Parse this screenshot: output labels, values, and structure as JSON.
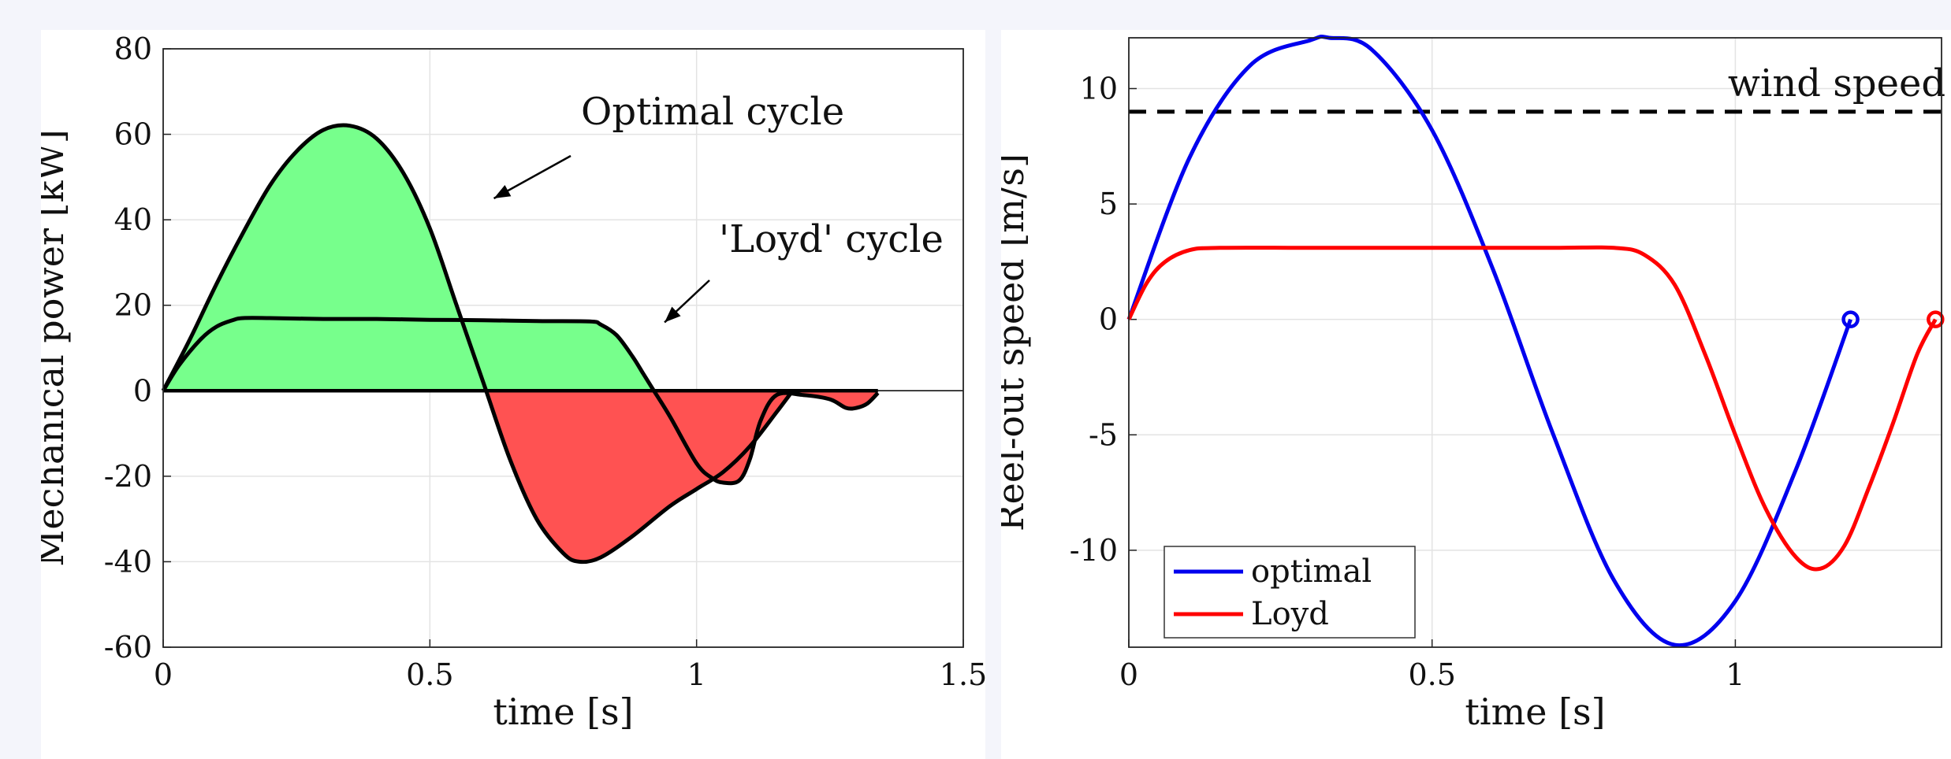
{
  "chart_data": [
    {
      "type": "area",
      "xlabel": "time [s]",
      "ylabel": "Mechanical power [kW]",
      "xlim": [
        0,
        1.5
      ],
      "ylim": [
        -60,
        80
      ],
      "xticks": [
        0,
        0.5,
        1,
        1.5
      ],
      "xtick_labels": [
        "0",
        "0.5",
        "1",
        "1.5"
      ],
      "yticks": [
        -60,
        -40,
        -20,
        0,
        20,
        40,
        60,
        80
      ],
      "ytick_labels": [
        "-60",
        "-40",
        "-20",
        "0",
        "20",
        "40",
        "60",
        "80"
      ],
      "grid": true,
      "positive_fill_color": "#77ff8c",
      "negative_fill_color": "#ff5252",
      "line_color": "#000000",
      "annotations": [
        {
          "text": "Optimal cycle",
          "arrow_to": [
            0.62,
            45
          ]
        },
        {
          "text": "'Loyd' cycle",
          "arrow_to": [
            0.94,
            16
          ]
        }
      ],
      "series": [
        {
          "x": [
            0,
            0.05,
            0.1,
            0.15,
            0.2,
            0.25,
            0.3,
            0.35,
            0.4,
            0.45,
            0.5,
            0.55,
            0.6,
            0.65,
            0.7,
            0.75,
            0.78,
            0.82,
            0.88,
            0.95,
            1.0,
            1.05,
            1.1,
            1.15,
            1.18
          ],
          "values": [
            0,
            12,
            25,
            37,
            48,
            56,
            61,
            62,
            59,
            51,
            38,
            20,
            2,
            -16,
            -30,
            -38,
            -40,
            -39,
            -34,
            -27,
            -23,
            -19,
            -13,
            -5,
            0
          ]
        },
        {
          "x": [
            0,
            0.03,
            0.07,
            0.1,
            0.13,
            0.15,
            0.2,
            0.3,
            0.4,
            0.5,
            0.6,
            0.7,
            0.8,
            0.82,
            0.85,
            0.88,
            0.9,
            0.92,
            0.95,
            1.0,
            1.03,
            1.05,
            1.08,
            1.1,
            1.12,
            1.15,
            1.2,
            1.25,
            1.28,
            1.3,
            1.32,
            1.34
          ],
          "values": [
            0,
            6,
            12,
            15,
            16.5,
            17,
            17,
            16.8,
            16.8,
            16.6,
            16.5,
            16.3,
            16.2,
            15.5,
            13,
            8,
            4,
            0,
            -6,
            -17,
            -20.5,
            -21.5,
            -21,
            -16,
            -7,
            -1,
            -1,
            -2,
            -4,
            -4,
            -3,
            -0.5
          ]
        }
      ]
    },
    {
      "type": "line",
      "xlabel": "time [s]",
      "ylabel": "Reel-out speed [m/s]",
      "xlim": [
        0,
        1.34
      ],
      "ylim": [
        -14.2,
        12.2
      ],
      "xticks": [
        0,
        0.5,
        1
      ],
      "xtick_labels": [
        "0",
        "0.5",
        "1"
      ],
      "yticks": [
        -10,
        -5,
        0,
        5,
        10
      ],
      "ytick_labels": [
        "-10",
        "-5",
        "0",
        "5",
        "10"
      ],
      "grid": true,
      "legend_position": "bottom-left",
      "reference_line": {
        "label": "wind speed",
        "y": 9,
        "style": "dashed",
        "color": "#000000"
      },
      "series": [
        {
          "name": "optimal",
          "color": "#0000ee",
          "x": [
            0,
            0.1,
            0.2,
            0.3,
            0.33,
            0.4,
            0.5,
            0.6,
            0.7,
            0.8,
            0.9,
            1.0,
            1.1,
            1.19
          ],
          "values": [
            0,
            7,
            11,
            12.1,
            12.2,
            11.7,
            8.2,
            2.2,
            -5,
            -11.3,
            -14.1,
            -12.2,
            -6.5,
            0
          ],
          "end_marker": "circle"
        },
        {
          "name": "Loyd",
          "color": "#ff0000",
          "x": [
            0,
            0.03,
            0.06,
            0.1,
            0.15,
            0.3,
            0.5,
            0.7,
            0.8,
            0.85,
            0.9,
            0.95,
            1.0,
            1.05,
            1.1,
            1.14,
            1.18,
            1.22,
            1.26,
            1.3,
            1.33
          ],
          "values": [
            0,
            1.6,
            2.5,
            3,
            3.1,
            3.1,
            3.1,
            3.1,
            3.1,
            2.8,
            1.5,
            -1.5,
            -5,
            -8.2,
            -10.3,
            -10.8,
            -9.8,
            -7.3,
            -4.5,
            -1.5,
            0
          ],
          "end_marker": "circle"
        }
      ]
    }
  ]
}
